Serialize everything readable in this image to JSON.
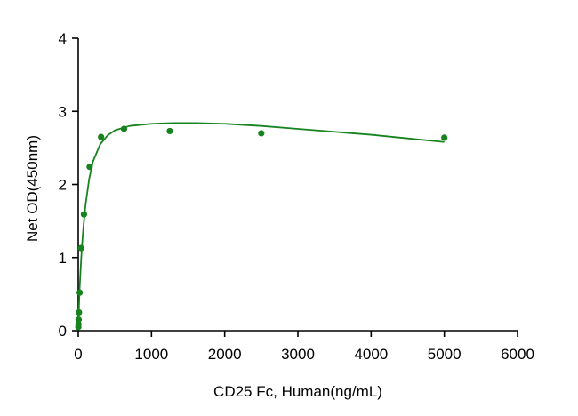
{
  "chart_data": {
    "type": "scatter",
    "title": "",
    "xlabel": "CD25 Fc, Human(ng/mL)",
    "ylabel": "Net OD(450nm)",
    "xlim": [
      0,
      6000
    ],
    "ylim": [
      0,
      4
    ],
    "xticks": [
      0,
      1000,
      2000,
      3000,
      4000,
      5000,
      6000
    ],
    "yticks": [
      0,
      1,
      2,
      3,
      4
    ],
    "grid": false,
    "legend": "none",
    "color": "#17831f",
    "series": [
      {
        "points": [
          {
            "x": 1.2,
            "y": 0.05
          },
          {
            "x": 2.4,
            "y": 0.09
          },
          {
            "x": 4.9,
            "y": 0.15
          },
          {
            "x": 9.8,
            "y": 0.25
          },
          {
            "x": 19.5,
            "y": 0.52
          },
          {
            "x": 39,
            "y": 1.13
          },
          {
            "x": 78,
            "y": 1.59
          },
          {
            "x": 156,
            "y": 2.24
          },
          {
            "x": 312,
            "y": 2.65
          },
          {
            "x": 625,
            "y": 2.76
          },
          {
            "x": 1250,
            "y": 2.73
          },
          {
            "x": 2500,
            "y": 2.7
          },
          {
            "x": 5000,
            "y": 2.64
          }
        ],
        "fit_curve": {
          "x": [
            0,
            10,
            20,
            40,
            60,
            80,
            100,
            150,
            200,
            300,
            400,
            500,
            700,
            1000,
            1300,
            1600,
            2000,
            2500,
            3000,
            3500,
            4000,
            4500,
            5000
          ],
          "y": [
            0.02,
            0.33,
            0.6,
            0.98,
            1.28,
            1.52,
            1.72,
            2.08,
            2.31,
            2.55,
            2.67,
            2.74,
            2.8,
            2.83,
            2.84,
            2.84,
            2.83,
            2.8,
            2.76,
            2.72,
            2.68,
            2.63,
            2.58
          ]
        }
      }
    ]
  }
}
